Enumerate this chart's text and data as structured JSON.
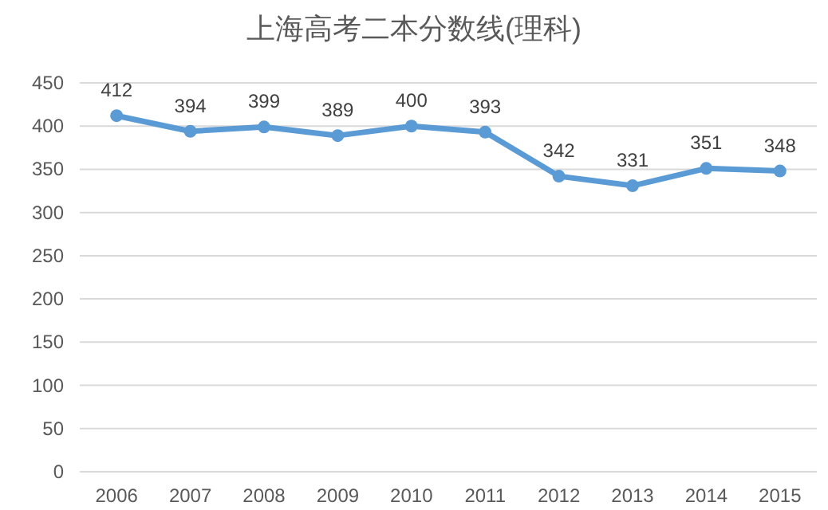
{
  "chart_data": {
    "type": "line",
    "title": "上海高考二本分数线(理科)",
    "categories": [
      "2006",
      "2007",
      "2008",
      "2009",
      "2010",
      "2011",
      "2012",
      "2013",
      "2014",
      "2015"
    ],
    "values": [
      412,
      394,
      399,
      389,
      400,
      393,
      342,
      331,
      351,
      348
    ],
    "color": "#5b9bd5",
    "ylim": [
      0,
      450
    ],
    "yticks": [
      0,
      50,
      100,
      150,
      200,
      250,
      300,
      350,
      400,
      450
    ],
    "grid": "y",
    "marker": "circle",
    "data_labels": true
  }
}
